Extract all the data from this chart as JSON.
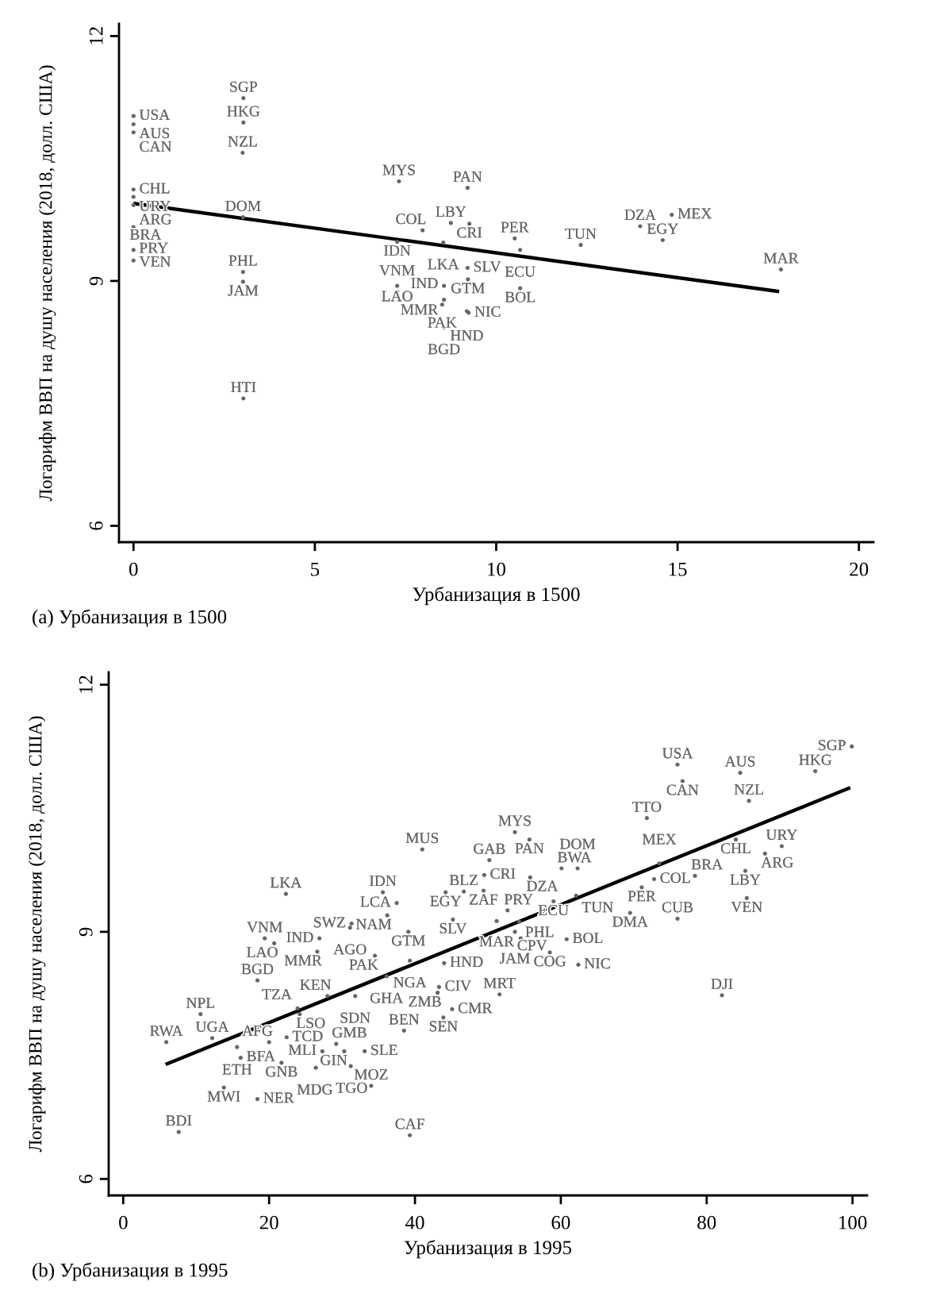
{
  "chart_data": [
    {
      "type": "scatter",
      "xlabel": "Урбанизация в 1500",
      "ylabel": "Логарифм ВВП на душу населения (2018, долл. США)",
      "annotations": [
        "(a) Урбанизация в 1500"
      ],
      "xlim": [
        -0.4,
        20.4
      ],
      "ylim": [
        5.8,
        12.15
      ],
      "xticks": [
        0,
        5,
        10,
        15,
        20
      ],
      "yticks": [
        6,
        9,
        12
      ],
      "marker": "circle",
      "series": [
        {
          "color": "#666666",
          "value_labels": [
            "USA",
            "AUS",
            "CAN",
            "CHL",
            "URY",
            "ARG",
            "BRA",
            "VEN",
            "PRY",
            "SGP",
            "HKG",
            "NZL",
            "DOM",
            "PHL",
            "JAM",
            "HTI",
            "MYS",
            "PAN",
            "LBY",
            "CRI",
            "COL",
            "IDN",
            "LKA",
            "PER",
            "ECU",
            "SLV",
            "GTM",
            "BOL",
            "VNM",
            "LAO",
            "IND",
            "MMR",
            "PAK",
            "HND",
            "NIC",
            "BGD",
            "TUN",
            "DZA",
            "MEX",
            "EGY",
            "MAR"
          ],
          "x": [
            0,
            0,
            0,
            0,
            0,
            0,
            0,
            0,
            0,
            3.03,
            3.03,
            3.01,
            3.02,
            3.02,
            3.02,
            3.03,
            7.32,
            9.21,
            8.75,
            9.26,
            7.97,
            7.27,
            8.54,
            10.51,
            10.66,
            9.21,
            9.22,
            10.66,
            7.27,
            7.27,
            8.56,
            8.56,
            8.51,
            9.19,
            9.24,
            8.56,
            12.33,
            13.97,
            14.84,
            14.59,
            17.85
          ],
          "values": [
            11.02,
            10.92,
            10.82,
            10.12,
            10.03,
            9.93,
            9.66,
            9.38,
            9.25,
            11.24,
            10.94,
            10.57,
            9.78,
            9.11,
            8.99,
            7.56,
            10.22,
            10.14,
            9.71,
            9.7,
            9.62,
            9.48,
            9.47,
            9.52,
            9.38,
            9.16,
            9.02,
            8.91,
            8.94,
            8.87,
            8.94,
            8.77,
            8.71,
            8.63,
            8.61,
            8.43,
            9.44,
            9.67,
            9.81,
            9.5,
            9.14
          ]
        },
        {
          "type": "line",
          "marker": "none",
          "color": "#000000",
          "x": [
            0,
            17.8
          ],
          "values": [
            9.95,
            8.87
          ]
        }
      ]
    },
    {
      "type": "scatter",
      "xlabel": "Урбанизация в 1995",
      "ylabel": "Логарифм ВВП на душу населения (2018, долл. США)",
      "annotations": [
        "(b) Урбанизация в 1995"
      ],
      "xlim": [
        -2,
        102
      ],
      "ylim": [
        5.8,
        12.15
      ],
      "xticks": [
        0,
        20,
        40,
        60,
        80,
        100
      ],
      "yticks": [
        6,
        9,
        12
      ],
      "marker": "circle",
      "series": [
        {
          "color": "#666666",
          "value_labels": [
            "SGP",
            "USA",
            "CAN",
            "AUS",
            "HKG",
            "NZL",
            "TTO",
            "CHL",
            "URY",
            "ARG",
            "LBY",
            "VEN",
            "MEX",
            "COL",
            "BRA",
            "PER",
            "DMA",
            "CUB",
            "DJI",
            "MYS",
            "PAN",
            "MUS",
            "GAB",
            "CRI",
            "DZA",
            "BWA",
            "DOM",
            "EGY",
            "BLZ",
            "ZAF",
            "IDN",
            "LCA",
            "NAM",
            "GTM",
            "SLV",
            "SWZ",
            "AGO",
            "PRY",
            "MAR",
            "PHL",
            "JAM",
            "CPV",
            "ECU",
            "TUN",
            "BOL",
            "COG",
            "NIC",
            "PAK",
            "NGA",
            "HND",
            "GHA",
            "KEN",
            "SDN",
            "CIV",
            "ZMB",
            "MRT",
            "CMR",
            "SEN",
            "BEN",
            "MOZ",
            "IND",
            "MMR",
            "LKA",
            "VNM",
            "LAO",
            "BGD",
            "NPL",
            "RWA",
            "UGA",
            "ETH",
            "BFA",
            "AFG",
            "TCD",
            "TZA",
            "LSO",
            "GNB",
            "MDG",
            "GMB",
            "MLI",
            "GIN",
            "SLE",
            "TGO",
            "MWI",
            "NER",
            "BDI",
            "CAF"
          ],
          "x": [
            99.9,
            76.0,
            76.7,
            84.6,
            94.9,
            85.8,
            71.8,
            84.0,
            90.3,
            88.0,
            85.3,
            85.5,
            73.5,
            72.8,
            78.4,
            71.1,
            69.5,
            76.0,
            82.1,
            53.7,
            55.7,
            41.0,
            50.2,
            49.5,
            55.8,
            60.1,
            62.3,
            44.2,
            46.7,
            49.4,
            35.6,
            37.5,
            36.2,
            39.1,
            45.2,
            31.3,
            31.1,
            52.7,
            51.2,
            54.3,
            53.7,
            54.5,
            59.0,
            62.1,
            60.8,
            58.5,
            62.4,
            34.5,
            39.3,
            44.0,
            36.1,
            28.0,
            31.8,
            43.3,
            43.1,
            51.6,
            45.1,
            43.9,
            38.5,
            34.0,
            26.9,
            26.6,
            22.3,
            19.4,
            20.7,
            18.4,
            10.6,
            5.9,
            12.2,
            15.6,
            16.1,
            20.0,
            22.4,
            23.9,
            24.2,
            21.7,
            26.4,
            29.2,
            27.3,
            30.3,
            33.1,
            31.2,
            13.8,
            18.4,
            7.6,
            39.3
          ],
          "values": [
            11.25,
            11.03,
            10.83,
            10.93,
            10.95,
            10.59,
            10.38,
            10.12,
            10.04,
            9.95,
            9.74,
            9.41,
            9.83,
            9.64,
            9.68,
            9.54,
            9.23,
            9.16,
            8.23,
            10.21,
            10.12,
            10.0,
            9.87,
            9.69,
            9.66,
            9.77,
            9.77,
            9.48,
            9.49,
            9.5,
            9.48,
            9.35,
            9.2,
            9.0,
            9.15,
            9.1,
            9.05,
            9.26,
            9.13,
            9.12,
            9.0,
            8.92,
            9.37,
            9.44,
            8.91,
            8.75,
            8.6,
            8.71,
            8.65,
            8.62,
            8.46,
            8.22,
            8.22,
            8.33,
            8.26,
            8.24,
            8.06,
            7.96,
            7.8,
            7.13,
            8.92,
            8.76,
            9.46,
            8.92,
            8.86,
            8.41,
            8.0,
            7.66,
            7.71,
            7.6,
            7.47,
            7.66,
            7.72,
            8.07,
            8.0,
            7.41,
            7.35,
            7.64,
            7.55,
            7.55,
            7.55,
            7.37,
            7.11,
            6.97,
            6.57,
            6.53
          ]
        },
        {
          "type": "line",
          "marker": "none",
          "color": "#000000",
          "x": [
            5.8,
            99.7
          ],
          "values": [
            7.39,
            10.75
          ]
        }
      ]
    }
  ]
}
